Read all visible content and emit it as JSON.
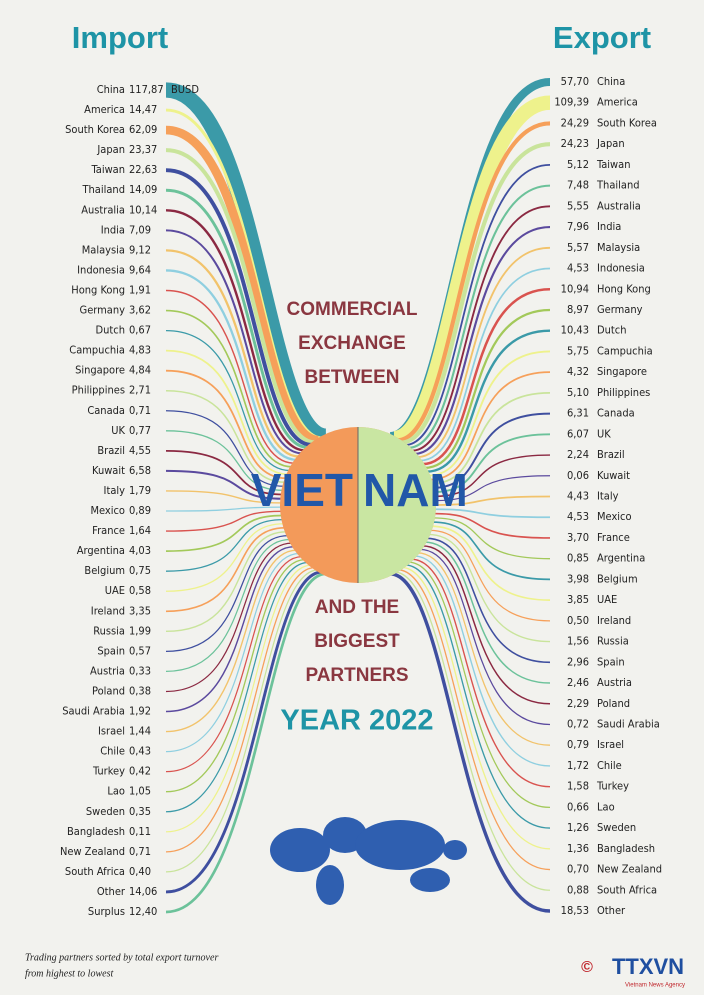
{
  "header": {
    "import": "Import",
    "export": "Export"
  },
  "title": {
    "line1": "COMMERCIAL",
    "line2": "EXCHANGE",
    "line3": "BETWEEN",
    "country1": "VIET",
    "country2": "NAM",
    "line4": "AND THE",
    "line5": "BIGGEST",
    "line6": "PARTNERS",
    "year": "YEAR 2022"
  },
  "import": [
    {
      "country": "China",
      "value": "117,87",
      "unit": "BUSD"
    },
    {
      "country": "America",
      "value": "14,47"
    },
    {
      "country": "South Korea",
      "value": "62,09"
    },
    {
      "country": "Japan",
      "value": "23,37"
    },
    {
      "country": "Taiwan",
      "value": "22,63"
    },
    {
      "country": "Thailand",
      "value": "14,09"
    },
    {
      "country": "Australia",
      "value": "10,14"
    },
    {
      "country": "India",
      "value": "7,09"
    },
    {
      "country": "Malaysia",
      "value": "9,12"
    },
    {
      "country": "Indonesia",
      "value": "9,64"
    },
    {
      "country": "Hong Kong",
      "value": "1,91"
    },
    {
      "country": "Germany",
      "value": "3,62"
    },
    {
      "country": "Dutch",
      "value": "0,67"
    },
    {
      "country": "Campuchia",
      "value": "4,83"
    },
    {
      "country": "Singapore",
      "value": "4,84"
    },
    {
      "country": "Philippines",
      "value": "2,71"
    },
    {
      "country": "Canada",
      "value": "0,71"
    },
    {
      "country": "UK",
      "value": "0,77"
    },
    {
      "country": "Brazil",
      "value": "4,55"
    },
    {
      "country": "Kuwait",
      "value": "6,58"
    },
    {
      "country": "Italy",
      "value": "1,79"
    },
    {
      "country": "Mexico",
      "value": "0,89"
    },
    {
      "country": "France",
      "value": "1,64"
    },
    {
      "country": "Argentina",
      "value": "4,03"
    },
    {
      "country": "Belgium",
      "value": "0,75"
    },
    {
      "country": "UAE",
      "value": "0,58"
    },
    {
      "country": "Ireland",
      "value": "3,35"
    },
    {
      "country": "Russia",
      "value": "1,99"
    },
    {
      "country": "Spain",
      "value": "0,57"
    },
    {
      "country": "Austria",
      "value": "0,33"
    },
    {
      "country": "Poland",
      "value": "0,38"
    },
    {
      "country": "Saudi Arabia",
      "value": "1,92"
    },
    {
      "country": "Israel",
      "value": "1,44"
    },
    {
      "country": "Chile",
      "value": "0,43"
    },
    {
      "country": "Turkey",
      "value": "0,42"
    },
    {
      "country": "Lao",
      "value": "1,05"
    },
    {
      "country": "Sweden",
      "value": "0,35"
    },
    {
      "country": "Bangladesh",
      "value": "0,11"
    },
    {
      "country": "New Zealand",
      "value": "0,71"
    },
    {
      "country": "South Africa",
      "value": "0,40"
    },
    {
      "country": "Other",
      "value": "14,06"
    },
    {
      "country": "Surplus",
      "value": "12,40"
    }
  ],
  "export": [
    {
      "country": "China",
      "value": "57,70"
    },
    {
      "country": "America",
      "value": "109,39"
    },
    {
      "country": "South Korea",
      "value": "24,29"
    },
    {
      "country": "Japan",
      "value": "24,23"
    },
    {
      "country": "Taiwan",
      "value": "5,12"
    },
    {
      "country": "Thailand",
      "value": "7,48"
    },
    {
      "country": "Australia",
      "value": "5,55"
    },
    {
      "country": "India",
      "value": "7,96"
    },
    {
      "country": "Malaysia",
      "value": "5,57"
    },
    {
      "country": "Indonesia",
      "value": "4,53"
    },
    {
      "country": "Hong Kong",
      "value": "10,94"
    },
    {
      "country": "Germany",
      "value": "8,97"
    },
    {
      "country": "Dutch",
      "value": "10,43"
    },
    {
      "country": "Campuchia",
      "value": "5,75"
    },
    {
      "country": "Singapore",
      "value": "4,32"
    },
    {
      "country": "Philippines",
      "value": "5,10"
    },
    {
      "country": "Canada",
      "value": "6,31"
    },
    {
      "country": "UK",
      "value": "6,07"
    },
    {
      "country": "Brazil",
      "value": "2,24"
    },
    {
      "country": "Kuwait",
      "value": "0,06"
    },
    {
      "country": "Italy",
      "value": "4,43"
    },
    {
      "country": "Mexico",
      "value": "4,53"
    },
    {
      "country": "France",
      "value": "3,70"
    },
    {
      "country": "Argentina",
      "value": "0,85"
    },
    {
      "country": "Belgium",
      "value": "3,98"
    },
    {
      "country": "UAE",
      "value": "3,85"
    },
    {
      "country": "Ireland",
      "value": "0,50"
    },
    {
      "country": "Russia",
      "value": "1,56"
    },
    {
      "country": "Spain",
      "value": "2,96"
    },
    {
      "country": "Austria",
      "value": "2,46"
    },
    {
      "country": "Poland",
      "value": "2,29"
    },
    {
      "country": "Saudi Arabia",
      "value": "0,72"
    },
    {
      "country": "Israel",
      "value": "0,79"
    },
    {
      "country": "Chile",
      "value": "1,72"
    },
    {
      "country": "Turkey",
      "value": "1,58"
    },
    {
      "country": "Lao",
      "value": "0,66"
    },
    {
      "country": "Sweden",
      "value": "1,26"
    },
    {
      "country": "Bangladesh",
      "value": "1,36"
    },
    {
      "country": "New Zealand",
      "value": "0,70"
    },
    {
      "country": "South Africa",
      "value": "0,88"
    },
    {
      "country": "Other",
      "value": "18,53"
    }
  ],
  "footnote": {
    "line1": "Trading partners sorted by total export turnover",
    "line2": "from highest to lowest"
  },
  "logo": {
    "symbol": "©",
    "name": "TTXVN",
    "sub": "Vietnam News Agency"
  }
}
